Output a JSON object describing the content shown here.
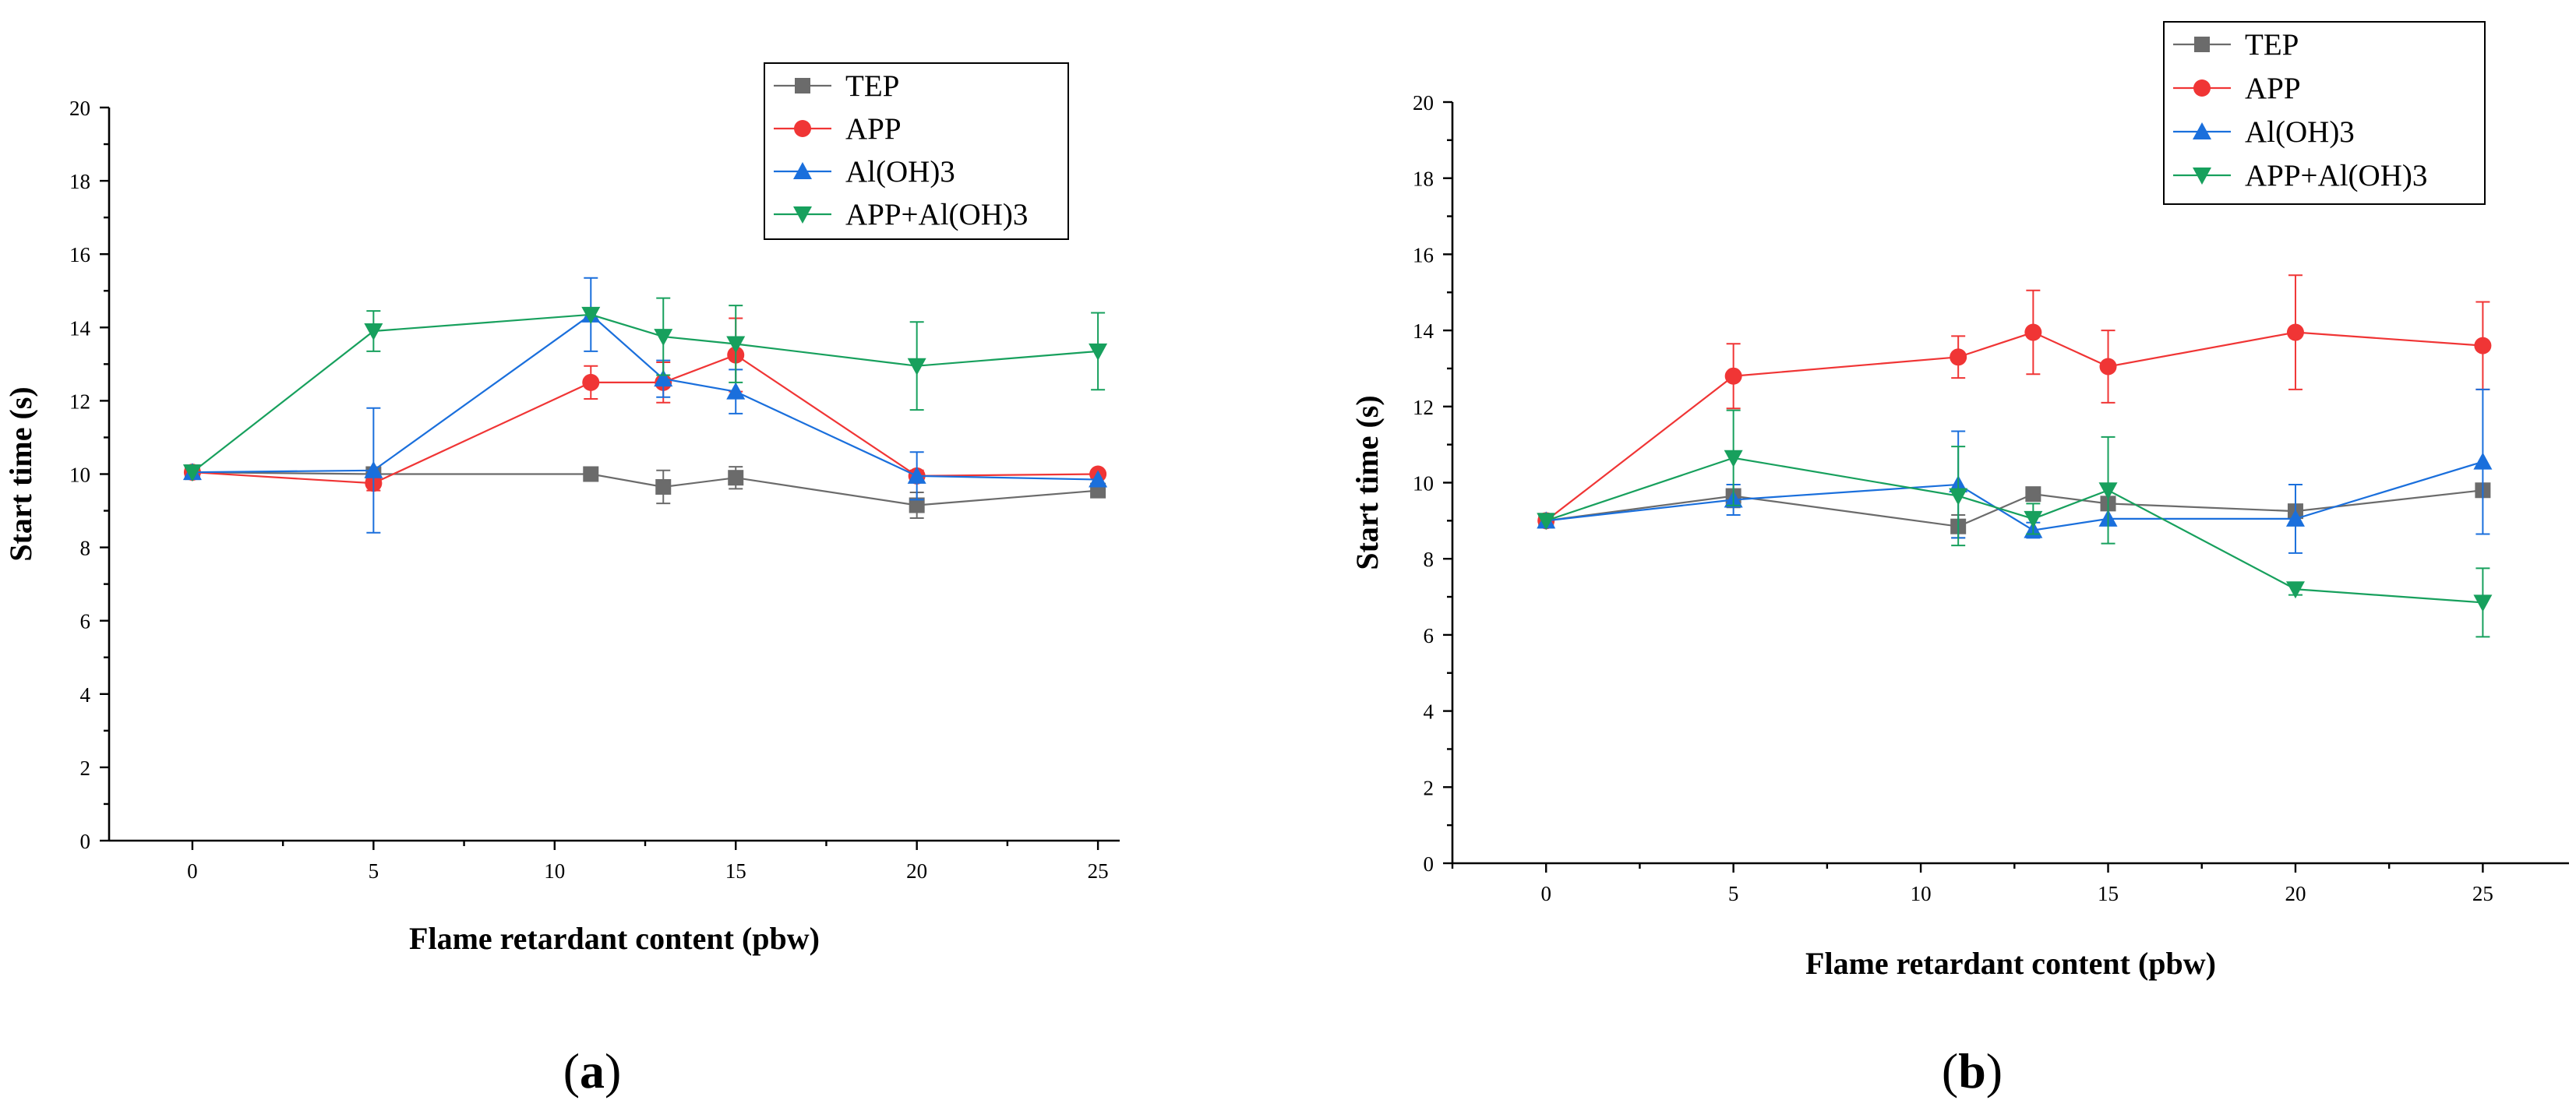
{
  "colors": {
    "TEP": "#6b6b6b",
    "APP": "#f03535",
    "Al(OH)3": "#1a6fdc",
    "APP+Al(OH)3": "#17a05d"
  },
  "chart_data": [
    {
      "id": "a",
      "type": "line",
      "panel_label": "a",
      "title": "",
      "xlabel": "Flame retardant content (pbw)",
      "ylabel": "Start time (s)",
      "xlim": [
        -2.3,
        25.6
      ],
      "ylim": [
        0,
        20
      ],
      "xticks": [
        0,
        5,
        10,
        15,
        20,
        25
      ],
      "yticks": [
        0,
        2,
        4,
        6,
        8,
        10,
        12,
        14,
        16,
        18,
        20
      ],
      "legend_position": "top-right",
      "x": [
        0,
        5,
        11,
        13,
        15,
        20,
        25
      ],
      "series": [
        {
          "name": "TEP",
          "marker": "square",
          "values": [
            10.05,
            10.0,
            10.0,
            9.65,
            9.9,
            9.15,
            9.55
          ],
          "errors": [
            0.0,
            0.0,
            0.0,
            0.45,
            0.3,
            0.35,
            0.0
          ]
        },
        {
          "name": "APP",
          "marker": "circle",
          "values": [
            10.05,
            9.75,
            12.5,
            12.5,
            13.25,
            9.95,
            10.0
          ],
          "errors": [
            0.0,
            0.2,
            0.45,
            0.55,
            1.0,
            0.15,
            0.0
          ]
        },
        {
          "name": "Al(OH)3",
          "marker": "triangle-up",
          "values": [
            10.05,
            10.1,
            14.35,
            12.6,
            12.25,
            9.95,
            9.85
          ],
          "errors": [
            0.0,
            1.7,
            1.0,
            0.5,
            0.6,
            0.65,
            0.0
          ]
        },
        {
          "name": "APP+Al(OH)3",
          "marker": "triangle-down",
          "values": [
            10.05,
            13.9,
            14.35,
            13.75,
            13.55,
            12.95,
            13.35
          ],
          "errors": [
            0.0,
            0.55,
            0.0,
            1.05,
            1.05,
            1.2,
            1.05
          ]
        }
      ]
    },
    {
      "id": "b",
      "type": "line",
      "panel_label": "b",
      "title": "",
      "xlabel": "Flame retardant content (pbw)",
      "ylabel": "Start time (s)",
      "xlim": [
        -2.5,
        27.3
      ],
      "ylim": [
        0,
        20
      ],
      "xticks": [
        0,
        5,
        10,
        15,
        20,
        25
      ],
      "yticks": [
        0,
        2,
        4,
        6,
        8,
        10,
        12,
        14,
        16,
        18,
        20
      ],
      "legend_position": "top-right",
      "x": [
        0,
        5,
        11,
        13,
        15,
        20,
        25
      ],
      "series": [
        {
          "name": "TEP",
          "marker": "square",
          "values": [
            9.0,
            9.65,
            8.85,
            9.7,
            9.45,
            9.25,
            9.8
          ],
          "errors": [
            0.0,
            0.3,
            0.3,
            0.0,
            0.0,
            0.0,
            0.0
          ]
        },
        {
          "name": "APP",
          "marker": "circle",
          "values": [
            9.0,
            12.8,
            13.3,
            13.95,
            13.05,
            13.95,
            13.6
          ],
          "errors": [
            0.0,
            0.85,
            0.55,
            1.1,
            0.95,
            1.5,
            1.15
          ]
        },
        {
          "name": "Al(OH)3",
          "marker": "triangle-up",
          "values": [
            9.0,
            9.55,
            9.95,
            8.75,
            9.05,
            9.05,
            10.55
          ],
          "errors": [
            0.0,
            0.4,
            1.4,
            0.2,
            0.0,
            0.9,
            1.9
          ]
        },
        {
          "name": "APP+Al(OH)3",
          "marker": "triangle-down",
          "values": [
            9.0,
            10.65,
            9.65,
            9.05,
            9.8,
            7.2,
            6.85
          ],
          "errors": [
            0.0,
            1.25,
            1.3,
            0.4,
            1.4,
            0.15,
            0.9
          ]
        }
      ]
    }
  ]
}
